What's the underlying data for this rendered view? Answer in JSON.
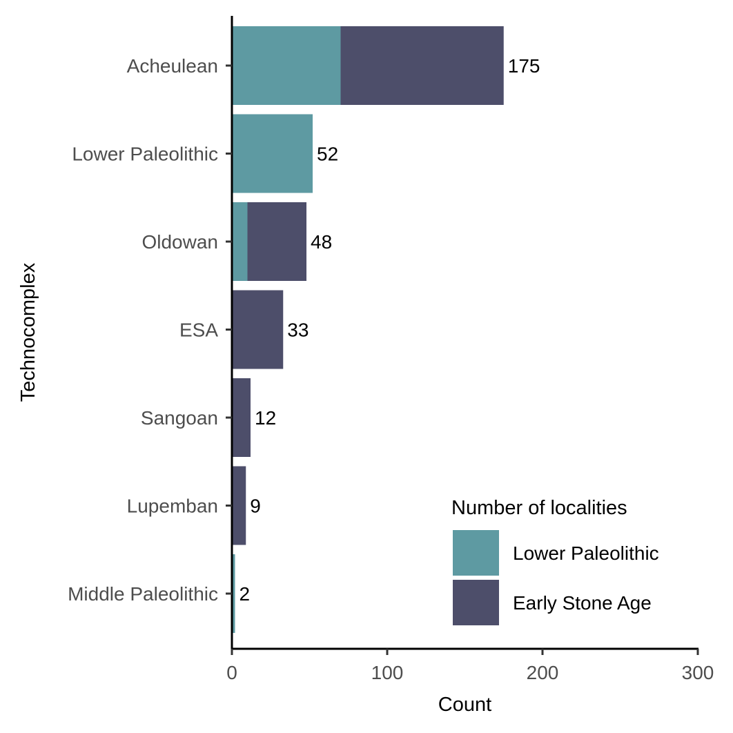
{
  "chart_data": {
    "type": "bar",
    "orientation": "horizontal",
    "stacked": true,
    "categories": [
      "Acheulean",
      "Lower Paleolithic",
      "Oldowan",
      "ESA",
      "Sangoan",
      "Lupemban",
      "Middle Paleolithic"
    ],
    "series": [
      {
        "name": "Lower Paleolithic",
        "values": [
          70,
          52,
          10,
          0,
          0,
          0,
          2
        ],
        "color": "#5e9aa2"
      },
      {
        "name": "Early Stone Age",
        "values": [
          105,
          0,
          38,
          33,
          12,
          9,
          0
        ],
        "color": "#4d4e6a"
      }
    ],
    "totals": [
      175,
      52,
      48,
      33,
      12,
      9,
      2
    ],
    "xlabel": "Count",
    "ylabel": "Technocomplex",
    "xlim": [
      0,
      300
    ],
    "xticks": [
      0,
      100,
      200,
      300
    ],
    "legend": {
      "title": "Number of localities",
      "position": "bottom-right",
      "entries": [
        "Lower Paleolithic",
        "Early Stone Age"
      ]
    },
    "grid": false
  }
}
